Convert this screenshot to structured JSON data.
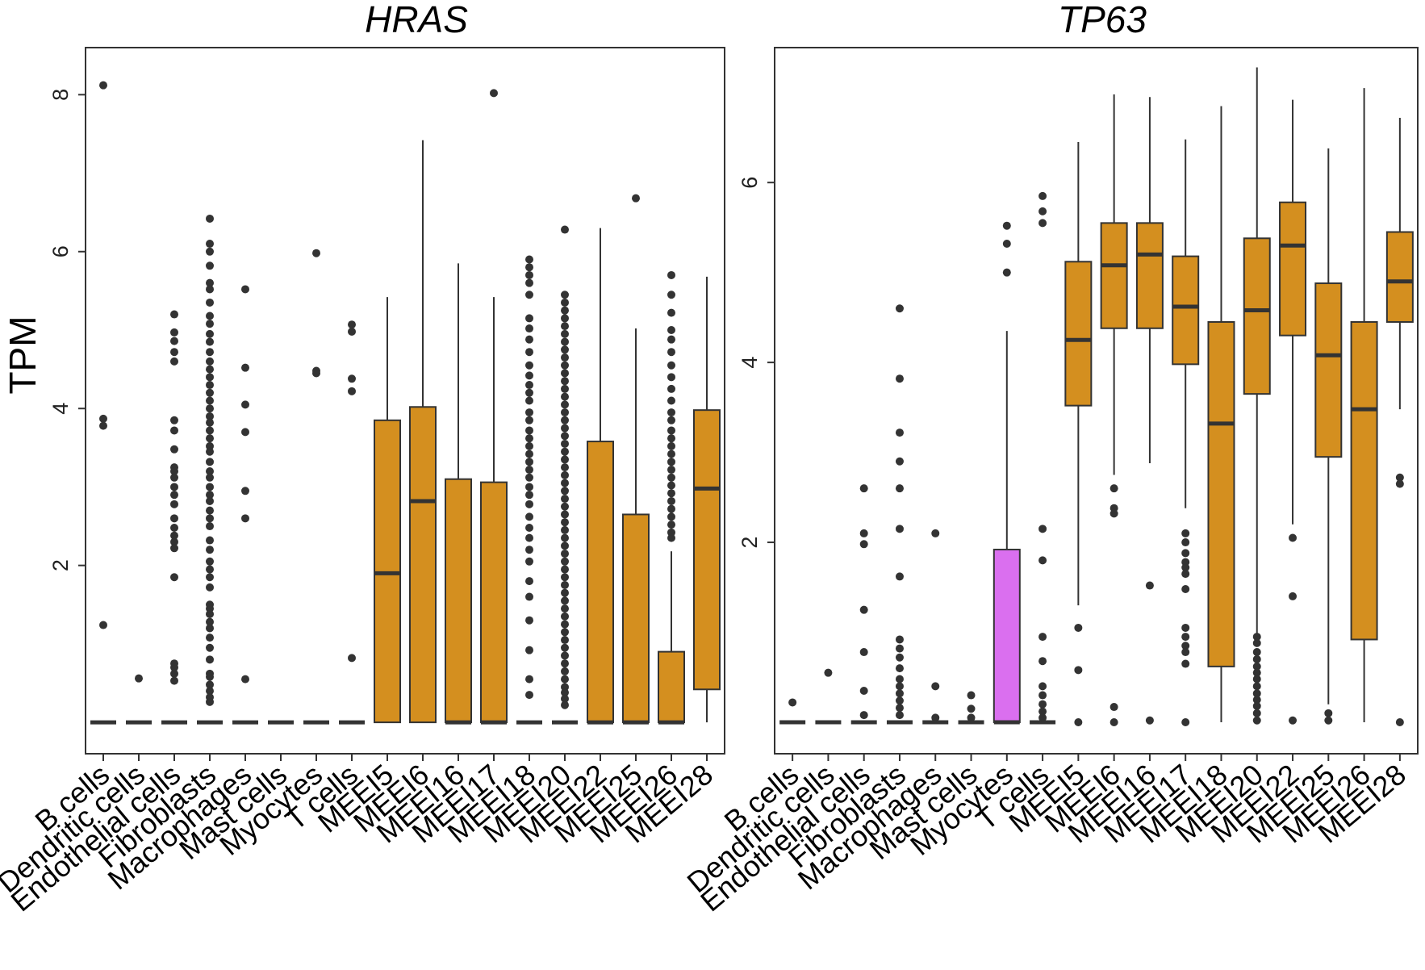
{
  "chart_data": {
    "type": "boxplot",
    "ylabel": "TPM",
    "categories": [
      "B cells",
      "Dendritic cells",
      "Endothelial cells",
      "Fibroblasts",
      "Macrophages",
      "Mast cells",
      "Myocytes",
      "T cells",
      "MEEI5",
      "MEEI6",
      "MEEI16",
      "MEEI17",
      "MEEI18",
      "MEEI20",
      "MEEI22",
      "MEEI25",
      "MEEI26",
      "MEEI28"
    ],
    "colors": {
      "tumor": "#D48F1F",
      "highlight": "#DA6FEF",
      "outline": "#333333",
      "point": "#333333",
      "frame": "#333333"
    },
    "panels": [
      {
        "title": "HRAS",
        "ylim": [
          -0.4,
          8.6
        ],
        "yticks": [
          2,
          4,
          6,
          8
        ],
        "boxes": [
          {
            "q1": 0,
            "median": 0,
            "q3": 0,
            "lo": 0,
            "hi": 0,
            "fill": "none",
            "outliers": [
              8.12,
              3.87,
              3.78,
              1.24
            ]
          },
          {
            "q1": 0,
            "median": 0,
            "q3": 0,
            "lo": 0,
            "hi": 0,
            "fill": "none",
            "outliers": [
              0.56
            ]
          },
          {
            "q1": 0,
            "median": 0,
            "q3": 0,
            "lo": 0,
            "hi": 0,
            "fill": "none",
            "outliers": [
              5.2,
              4.97,
              4.86,
              4.72,
              4.6,
              3.85,
              3.72,
              3.48,
              3.25,
              3.2,
              3.12,
              3.0,
              2.9,
              2.78,
              2.6,
              2.48,
              2.38,
              2.3,
              2.22,
              1.85,
              0.75,
              0.7,
              0.62,
              0.53
            ]
          },
          {
            "q1": 0,
            "median": 0,
            "q3": 0,
            "lo": 0,
            "hi": 0,
            "fill": "none",
            "outliers": [
              6.42,
              6.1,
              6.0,
              5.82,
              5.6,
              5.52,
              5.35,
              5.18,
              5.08,
              4.95,
              4.85,
              4.72,
              4.6,
              4.5,
              4.4,
              4.3,
              4.2,
              4.1,
              4.0,
              3.9,
              3.82,
              3.72,
              3.62,
              3.52,
              3.45,
              3.32,
              3.2,
              3.12,
              3.0,
              2.9,
              2.82,
              2.7,
              2.6,
              2.5,
              2.32,
              2.2,
              2.05,
              1.95,
              1.85,
              1.72,
              1.5,
              1.45,
              1.38,
              1.28,
              1.2,
              1.08,
              0.95,
              0.8,
              0.62,
              0.58,
              0.48,
              0.4,
              0.32,
              0.26
            ]
          },
          {
            "q1": 0,
            "median": 0,
            "q3": 0,
            "lo": 0,
            "hi": 0,
            "fill": "none",
            "outliers": [
              5.52,
              4.52,
              4.05,
              3.7,
              2.95,
              2.6,
              0.55
            ]
          },
          {
            "q1": 0,
            "median": 0,
            "q3": 0,
            "lo": 0,
            "hi": 0,
            "fill": "none",
            "outliers": []
          },
          {
            "q1": 0,
            "median": 0,
            "q3": 0,
            "lo": 0,
            "hi": 0,
            "fill": "none",
            "outliers": [
              5.98,
              4.48,
              4.45
            ]
          },
          {
            "q1": 0,
            "median": 0,
            "q3": 0,
            "lo": 0,
            "hi": 0,
            "fill": "none",
            "outliers": [
              5.07,
              4.98,
              4.38,
              4.22,
              0.82
            ]
          },
          {
            "q1": 0,
            "median": 1.9,
            "q3": 3.85,
            "lo": 0,
            "hi": 5.42,
            "fill": "tumor",
            "outliers": []
          },
          {
            "q1": 0,
            "median": 2.82,
            "q3": 4.02,
            "lo": 0,
            "hi": 7.42,
            "fill": "tumor",
            "outliers": []
          },
          {
            "q1": 0,
            "median": 0,
            "q3": 3.1,
            "lo": 0,
            "hi": 5.85,
            "fill": "tumor",
            "outliers": []
          },
          {
            "q1": 0,
            "median": 0,
            "q3": 3.06,
            "lo": 0,
            "hi": 5.42,
            "fill": "tumor",
            "outliers": [
              8.02
            ]
          },
          {
            "q1": 0,
            "median": 0,
            "q3": 0,
            "lo": 0,
            "hi": 0,
            "fill": "none",
            "outliers": [
              5.9,
              5.8,
              5.7,
              5.6,
              5.45,
              5.15,
              5.02,
              4.88,
              4.72,
              4.55,
              4.42,
              4.3,
              4.2,
              4.1,
              3.95,
              3.85,
              3.72,
              3.62,
              3.52,
              3.42,
              3.32,
              3.22,
              3.12,
              3.0,
              2.9,
              2.78,
              2.62,
              2.48,
              2.35,
              2.2,
              2.05,
              1.8,
              1.6,
              1.3,
              0.92,
              0.55,
              0.35
            ]
          },
          {
            "q1": 0,
            "median": 0,
            "q3": 0,
            "lo": 0,
            "hi": 0,
            "fill": "none",
            "outliers": [
              6.28,
              5.45,
              5.35,
              5.25,
              5.15,
              5.05,
              4.95,
              4.85,
              4.75,
              4.65,
              4.55,
              4.45,
              4.35,
              4.25,
              4.15,
              4.05,
              3.95,
              3.85,
              3.75,
              3.65,
              3.55,
              3.45,
              3.35,
              3.25,
              3.15,
              3.05,
              2.95,
              2.85,
              2.75,
              2.65,
              2.55,
              2.45,
              2.35,
              2.25,
              2.15,
              2.05,
              1.95,
              1.85,
              1.75,
              1.65,
              1.55,
              1.45,
              1.35,
              1.25,
              1.15,
              1.05,
              0.95,
              0.85,
              0.75,
              0.65,
              0.55,
              0.45,
              0.38,
              0.3,
              0.22
            ]
          },
          {
            "q1": 0,
            "median": 0,
            "q3": 3.58,
            "lo": 0,
            "hi": 6.3,
            "fill": "tumor",
            "outliers": []
          },
          {
            "q1": 0,
            "median": 0,
            "q3": 2.65,
            "lo": 0,
            "hi": 5.02,
            "fill": "tumor",
            "outliers": [
              6.68
            ]
          },
          {
            "q1": 0,
            "median": 0,
            "q3": 0.9,
            "lo": 0,
            "hi": 2.18,
            "fill": "tumor",
            "outliers": [
              5.7,
              5.45,
              5.22,
              5.0,
              4.88,
              4.72,
              4.55,
              4.4,
              4.25,
              4.1,
              3.95,
              3.85,
              3.72,
              3.62,
              3.52,
              3.42,
              3.32,
              3.22,
              3.12,
              3.02,
              2.92,
              2.82,
              2.72,
              2.62,
              2.52,
              2.42,
              2.35
            ]
          },
          {
            "q1": 0.42,
            "median": 2.98,
            "q3": 3.98,
            "lo": 0,
            "hi": 5.68,
            "fill": "tumor",
            "outliers": []
          }
        ]
      },
      {
        "title": "TP63",
        "ylim": [
          -0.35,
          7.5
        ],
        "yticks": [
          2,
          4,
          6
        ],
        "boxes": [
          {
            "q1": 0,
            "median": 0,
            "q3": 0,
            "lo": 0,
            "hi": 0,
            "fill": "none",
            "outliers": [
              0.22
            ]
          },
          {
            "q1": 0,
            "median": 0,
            "q3": 0,
            "lo": 0,
            "hi": 0,
            "fill": "none",
            "outliers": [
              0.55
            ]
          },
          {
            "q1": 0,
            "median": 0,
            "q3": 0,
            "lo": 0,
            "hi": 0,
            "fill": "none",
            "outliers": [
              2.6,
              2.1,
              1.98,
              1.25,
              0.78,
              0.35,
              0.08
            ]
          },
          {
            "q1": 0,
            "median": 0,
            "q3": 0,
            "lo": 0,
            "hi": 0,
            "fill": "none",
            "outliers": [
              4.6,
              3.82,
              3.22,
              2.9,
              2.6,
              2.15,
              1.62,
              0.92,
              0.82,
              0.72,
              0.6,
              0.48,
              0.4,
              0.32,
              0.24,
              0.16,
              0.08
            ]
          },
          {
            "q1": 0,
            "median": 0,
            "q3": 0,
            "lo": 0,
            "hi": 0,
            "fill": "none",
            "outliers": [
              2.1,
              0.4,
              0.05
            ]
          },
          {
            "q1": 0,
            "median": 0,
            "q3": 0,
            "lo": 0,
            "hi": 0,
            "fill": "none",
            "outliers": [
              0.3,
              0.15,
              0.05
            ]
          },
          {
            "q1": 0,
            "median": 0,
            "q3": 1.92,
            "lo": 0,
            "hi": 4.35,
            "fill": "highlight",
            "outliers": [
              5.52,
              5.32,
              5.0
            ]
          },
          {
            "q1": 0,
            "median": 0,
            "q3": 0,
            "lo": 0,
            "hi": 0,
            "fill": "none",
            "outliers": [
              5.85,
              5.68,
              5.55,
              2.15,
              1.8,
              0.95,
              0.68,
              0.4,
              0.3,
              0.2,
              0.12,
              0.05
            ]
          },
          {
            "q1": 3.52,
            "median": 4.25,
            "q3": 5.12,
            "lo": 1.3,
            "hi": 6.45,
            "fill": "tumor",
            "outliers": [
              1.05,
              0.58,
              0
            ]
          },
          {
            "q1": 4.38,
            "median": 5.08,
            "q3": 5.55,
            "lo": 2.75,
            "hi": 6.98,
            "fill": "tumor",
            "outliers": [
              2.6,
              2.38,
              2.32,
              0.17,
              0
            ]
          },
          {
            "q1": 4.38,
            "median": 5.2,
            "q3": 5.55,
            "lo": 2.88,
            "hi": 6.95,
            "fill": "tumor",
            "outliers": [
              1.52,
              0.02
            ]
          },
          {
            "q1": 3.98,
            "median": 4.62,
            "q3": 5.18,
            "lo": 2.38,
            "hi": 6.48,
            "fill": "tumor",
            "outliers": [
              2.1,
              2.0,
              1.88,
              1.78,
              1.72,
              1.65,
              1.48,
              1.05,
              0.95,
              0.85,
              0.78,
              0.65,
              0
            ]
          },
          {
            "q1": 0.62,
            "median": 3.32,
            "q3": 4.45,
            "lo": 0,
            "hi": 6.85,
            "fill": "tumor",
            "outliers": []
          },
          {
            "q1": 3.65,
            "median": 4.58,
            "q3": 5.38,
            "lo": 0.98,
            "hi": 7.28,
            "fill": "tumor",
            "outliers": [
              0.95,
              0.88,
              0.78,
              0.7,
              0.62,
              0.55,
              0.48,
              0.4,
              0.32,
              0.25,
              0.18,
              0.1,
              0.02
            ]
          },
          {
            "q1": 4.3,
            "median": 5.3,
            "q3": 5.78,
            "lo": 2.2,
            "hi": 6.92,
            "fill": "tumor",
            "outliers": [
              2.05,
              1.4,
              0.02
            ]
          },
          {
            "q1": 2.95,
            "median": 4.08,
            "q3": 4.88,
            "lo": 0.2,
            "hi": 6.38,
            "fill": "tumor",
            "outliers": [
              0.1,
              0.02
            ]
          },
          {
            "q1": 0.92,
            "median": 3.48,
            "q3": 4.45,
            "lo": 0,
            "hi": 7.05,
            "fill": "tumor",
            "outliers": []
          },
          {
            "q1": 4.45,
            "median": 4.9,
            "q3": 5.45,
            "lo": 3.48,
            "hi": 6.72,
            "fill": "tumor",
            "outliers": [
              2.72,
              2.65,
              0
            ]
          }
        ]
      }
    ]
  }
}
